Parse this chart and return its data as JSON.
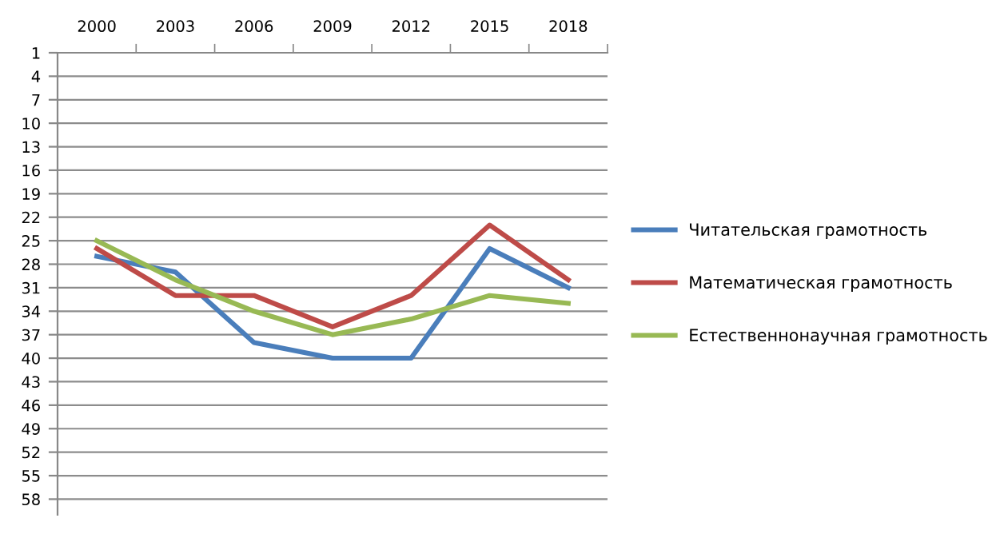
{
  "chart_data": {
    "type": "line",
    "categories": [
      "2000",
      "2003",
      "2006",
      "2009",
      "2012",
      "2015",
      "2018"
    ],
    "series": [
      {
        "name": "Читательская грамотность",
        "color": "#4a7ebb",
        "values": [
          27,
          29,
          38,
          40,
          40,
          26,
          31
        ]
      },
      {
        "name": "Математическая грамотность",
        "color": "#be4b48",
        "values": [
          26,
          32,
          32,
          36,
          32,
          23,
          30
        ]
      },
      {
        "name": "Естественнонаучная грамотность",
        "color": "#98b954",
        "values": [
          25,
          30,
          34,
          37,
          35,
          32,
          33
        ]
      }
    ],
    "ylim": [
      60,
      1
    ],
    "yticks": [
      1,
      4,
      7,
      10,
      13,
      16,
      19,
      22,
      25,
      28,
      31,
      34,
      37,
      40,
      43,
      46,
      49,
      52,
      55,
      58
    ],
    "grid": "y",
    "legend": "right",
    "marker": "none",
    "line_style": "solid"
  }
}
